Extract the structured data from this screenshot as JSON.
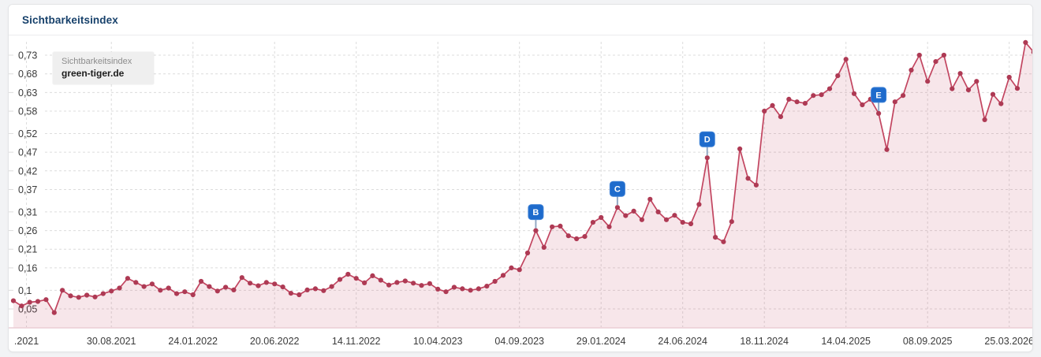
{
  "header": {
    "title": "Sichtbarkeitsindex"
  },
  "tooltip": {
    "label": "Sichtbarkeitsindex",
    "domain": "green-tiger.de"
  },
  "chart_data": {
    "type": "line",
    "title": "Sichtbarkeitsindex",
    "legend_entries": [
      "green-tiger.de"
    ],
    "grid": true,
    "ylim": [
      0.02,
      0.78
    ],
    "y_tick_values": [
      0.73,
      0.68,
      0.63,
      0.58,
      0.52,
      0.47,
      0.42,
      0.37,
      0.31,
      0.26,
      0.21,
      0.16,
      0.1,
      0.05
    ],
    "y_tick_labels": [
      "0,73",
      "0,68",
      "0,63",
      "0,58",
      "0,52",
      "0,47",
      "0,42",
      "0,37",
      "0,31",
      "0,26",
      "0,21",
      "0,16",
      "0,1",
      "0,05"
    ],
    "x_tick_labels": [
      ".2021",
      "30.08.2021",
      "24.01.2022",
      "20.06.2022",
      "14.11.2022",
      "10.04.2023",
      "04.09.2023",
      "29.01.2024",
      "24.06.2024",
      "18.11.2024",
      "14.04.2025",
      "08.09.2025",
      "25.03.2026"
    ],
    "x_tick_positions": [
      1.6,
      12,
      22,
      32,
      42,
      52,
      62,
      72,
      82,
      92,
      102,
      112,
      122
    ],
    "series": [
      {
        "name": "green-tiger.de",
        "values": [
          0.072,
          0.058,
          0.068,
          0.07,
          0.075,
          0.04,
          0.1,
          0.085,
          0.081,
          0.087,
          0.082,
          0.091,
          0.098,
          0.106,
          0.132,
          0.121,
          0.11,
          0.117,
          0.1,
          0.106,
          0.091,
          0.096,
          0.088,
          0.124,
          0.11,
          0.098,
          0.108,
          0.101,
          0.134,
          0.119,
          0.112,
          0.121,
          0.117,
          0.109,
          0.092,
          0.088,
          0.101,
          0.104,
          0.099,
          0.11,
          0.129,
          0.143,
          0.132,
          0.12,
          0.139,
          0.127,
          0.114,
          0.121,
          0.125,
          0.119,
          0.113,
          0.118,
          0.103,
          0.096,
          0.108,
          0.104,
          0.1,
          0.104,
          0.111,
          0.124,
          0.14,
          0.16,
          0.155,
          0.2,
          0.26,
          0.215,
          0.27,
          0.272,
          0.246,
          0.238,
          0.244,
          0.282,
          0.295,
          0.27,
          0.322,
          0.3,
          0.312,
          0.289,
          0.344,
          0.31,
          0.289,
          0.301,
          0.282,
          0.278,
          0.33,
          0.455,
          0.242,
          0.23,
          0.284,
          0.479,
          0.4,
          0.382,
          0.58,
          0.595,
          0.565,
          0.612,
          0.605,
          0.601,
          0.622,
          0.624,
          0.64,
          0.675,
          0.719,
          0.627,
          0.597,
          0.612,
          0.574,
          0.477,
          0.605,
          0.622,
          0.69,
          0.73,
          0.66,
          0.713,
          0.73,
          0.64,
          0.681,
          0.637,
          0.66,
          0.557,
          0.625,
          0.6,
          0.671,
          0.641,
          0.764,
          0.738
        ]
      }
    ],
    "event_markers": [
      {
        "label": "B",
        "index": 64,
        "value": 0.26
      },
      {
        "label": "C",
        "index": 74,
        "value": 0.322
      },
      {
        "label": "D",
        "index": 85,
        "value": 0.455
      },
      {
        "label": "E",
        "index": 106,
        "value": 0.574
      }
    ],
    "colors": {
      "line": "#c24560",
      "dot": "#ae3a54",
      "area_fill": "rgba(196,64,92,0.13)",
      "grid": "#dcdcdc",
      "baseline": "#eccdd5",
      "axis_text": "#3a3a3a",
      "marker_bg": "#1e6bcc",
      "marker_border": "#3f82d6",
      "marker_text": "#ffffff",
      "marker_stem": "#93a9c4",
      "title": "#17416b"
    }
  }
}
